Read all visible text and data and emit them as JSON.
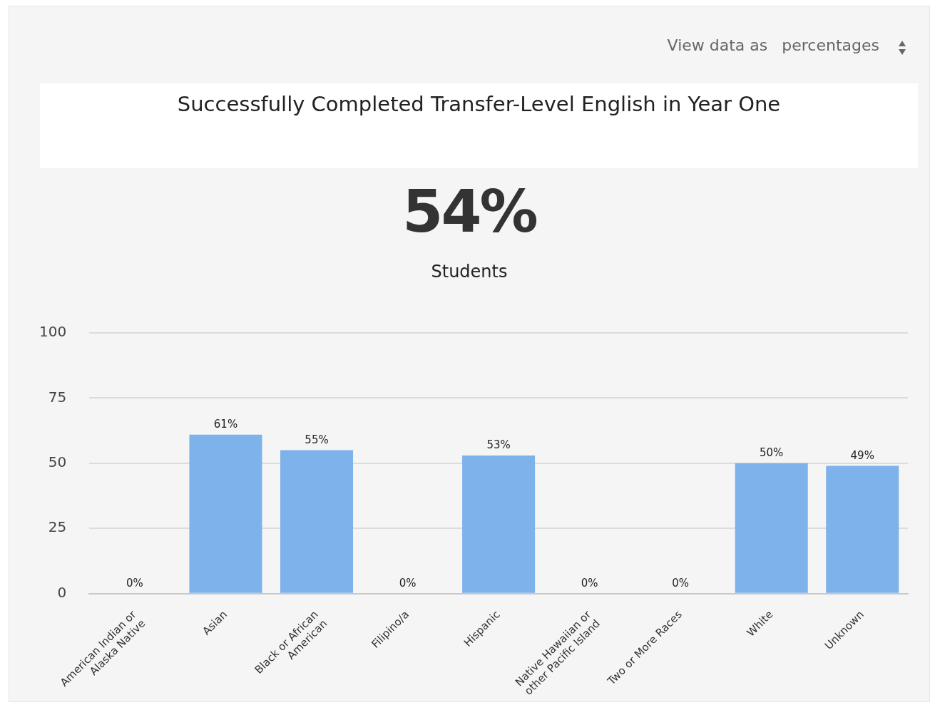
{
  "chart_data": {
    "type": "bar",
    "title": "Successfully Completed Transfer-Level English in Year One",
    "annotations": [
      "View data as",
      "percentages",
      "54%",
      "Students"
    ],
    "categories": [
      "American Indian or Alaska Native",
      "Asian",
      "Black or African American",
      "Filipino/a",
      "Hispanic",
      "Native Hawaiian or other Pacific Island",
      "Two or More Races",
      "White",
      "Unknown"
    ],
    "values": [
      0,
      61,
      55,
      0,
      53,
      0,
      0,
      50,
      49
    ],
    "value_labels": [
      "0%",
      "61%",
      "55%",
      "0%",
      "53%",
      "0%",
      "0%",
      "50%",
      "49%"
    ],
    "color": "#7eb2ea",
    "ylim": [
      0,
      100
    ],
    "yticks": [
      0,
      25,
      50,
      75,
      100
    ],
    "grid": "y",
    "legend": false
  }
}
